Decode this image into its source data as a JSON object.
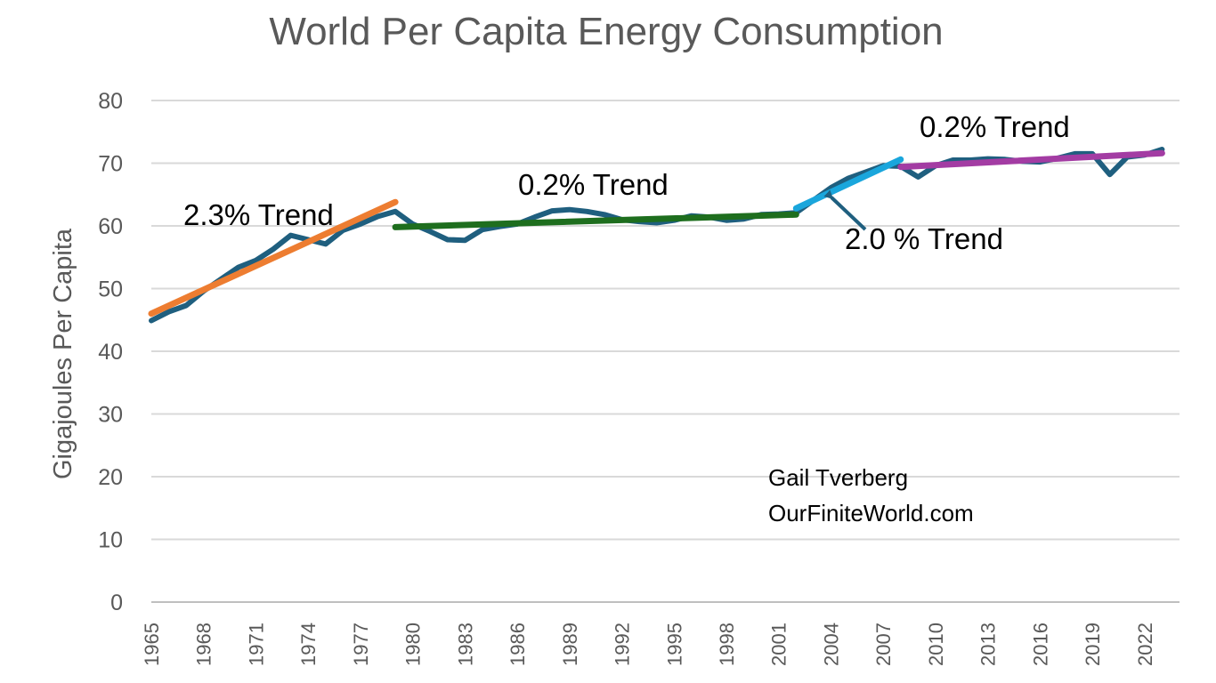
{
  "chart_data": {
    "type": "line",
    "title": "World Per Capita Energy Consumption",
    "xlabel": "",
    "ylabel": "Gigajoules Per Capita",
    "ylim": [
      0,
      80
    ],
    "yticks": [
      0,
      10,
      20,
      30,
      40,
      50,
      60,
      70,
      80
    ],
    "xticks": [
      "1965",
      "1968",
      "1971",
      "1974",
      "1977",
      "1980",
      "1983",
      "1986",
      "1989",
      "1992",
      "1995",
      "1998",
      "2001",
      "2004",
      "2007",
      "2010",
      "2013",
      "2016",
      "2019",
      "2022"
    ],
    "grid": true,
    "legend": "none",
    "colors": {
      "main": "#1f5f7f",
      "trend_1965_1979": "#ed7d31",
      "trend_1979_2002": "#1e6e1e",
      "trend_2002_2008": "#1aa6dc",
      "trend_2008_2023": "#a33ca3",
      "gridline": "#d9d9d9",
      "arrow": "#1f5f7f"
    },
    "series": [
      {
        "x": [
          1965,
          1966,
          1967,
          1968,
          1969,
          1970,
          1971,
          1972,
          1973,
          1974,
          1975,
          1976,
          1977,
          1978,
          1979,
          1980,
          1981,
          1982,
          1983,
          1984,
          1985,
          1986,
          1987,
          1988,
          1989,
          1990,
          1991,
          1992,
          1993,
          1994,
          1995,
          1996,
          1997,
          1998,
          1999,
          2000,
          2001,
          2002,
          2003,
          2004,
          2005,
          2006,
          2007,
          2008,
          2009,
          2010,
          2011,
          2012,
          2013,
          2014,
          2015,
          2016,
          2017,
          2018,
          2019,
          2020,
          2021,
          2022,
          2023
        ],
        "values": [
          44.9,
          46.3,
          47.3,
          49.6,
          51.5,
          53.4,
          54.5,
          56.3,
          58.5,
          57.8,
          57.1,
          59.3,
          60.3,
          61.5,
          62.3,
          60.3,
          59.1,
          57.8,
          57.7,
          59.4,
          59.9,
          60.3,
          61.4,
          62.4,
          62.6,
          62.3,
          61.8,
          61.0,
          60.7,
          60.5,
          60.9,
          61.6,
          61.4,
          60.9,
          61.1,
          61.8,
          61.9,
          62.1,
          64.1,
          66.1,
          67.6,
          68.6,
          69.6,
          69.5,
          67.8,
          69.6,
          70.5,
          70.5,
          70.7,
          70.6,
          70.3,
          70.2,
          70.8,
          71.5,
          71.5,
          68.2,
          71.0,
          71.3,
          72.2
        ]
      },
      {
        "x": [
          1965,
          1979
        ],
        "values": [
          46.0,
          63.8
        ]
      },
      {
        "x": [
          1979,
          2002
        ],
        "values": [
          59.8,
          61.8
        ]
      },
      {
        "x": [
          2002,
          2008
        ],
        "values": [
          62.8,
          70.6
        ]
      },
      {
        "x": [
          2008,
          2023
        ],
        "values": [
          69.4,
          71.6
        ]
      }
    ],
    "annotations": [
      {
        "text": "2.3% Trend"
      },
      {
        "text": "0.2% Trend"
      },
      {
        "text": "2.0 % Trend"
      },
      {
        "text": "0.2%  Trend"
      }
    ],
    "credit": [
      "Gail Tverberg",
      "OurFiniteWorld.com"
    ]
  }
}
